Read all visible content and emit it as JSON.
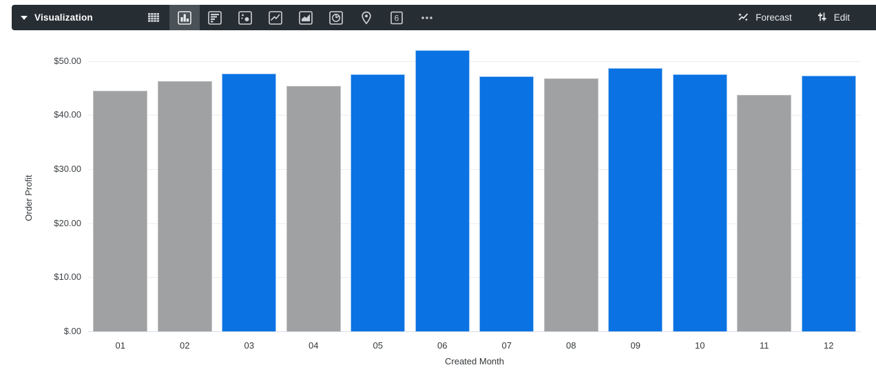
{
  "toolbar": {
    "picker_label": "Visualization",
    "forecast_label": "Forecast",
    "edit_label": "Edit",
    "icons": [
      "table-icon",
      "column-chart-icon",
      "bar-chart-icon",
      "scatter-plot-icon",
      "line-chart-icon",
      "area-chart-icon",
      "pie-chart-icon",
      "map-icon",
      "single-value-icon",
      "more-icon"
    ],
    "selected_icon": "column-chart-icon",
    "single_value_glyph": "6",
    "colors": {
      "bg": "#262D33",
      "selected_bg": "#4A5157",
      "icon": "#CDD1D4"
    }
  },
  "chart_data": {
    "type": "bar",
    "title": "",
    "xlabel": "Created Month",
    "ylabel": "Order Profit",
    "categories": [
      "01",
      "02",
      "03",
      "04",
      "05",
      "06",
      "07",
      "08",
      "09",
      "10",
      "11",
      "12"
    ],
    "values": [
      44.5,
      46.3,
      47.7,
      45.4,
      47.5,
      52.0,
      47.2,
      46.7,
      48.7,
      47.5,
      43.7,
      47.3
    ],
    "bar_colors": [
      "gray",
      "gray",
      "blue",
      "gray",
      "blue",
      "blue",
      "blue",
      "gray",
      "blue",
      "blue",
      "gray",
      "blue"
    ],
    "colors": {
      "blue": "#0A72E2",
      "gray": "#A0A1A2"
    },
    "y_ticks": [
      {
        "value": 0,
        "label": "$.00"
      },
      {
        "value": 10,
        "label": "$10.00"
      },
      {
        "value": 20,
        "label": "$20.00"
      },
      {
        "value": 30,
        "label": "$30.00"
      },
      {
        "value": 40,
        "label": "$40.00"
      },
      {
        "value": 50,
        "label": "$50.00"
      }
    ],
    "ylim": [
      0,
      54
    ],
    "grid": true,
    "legend": "none"
  }
}
